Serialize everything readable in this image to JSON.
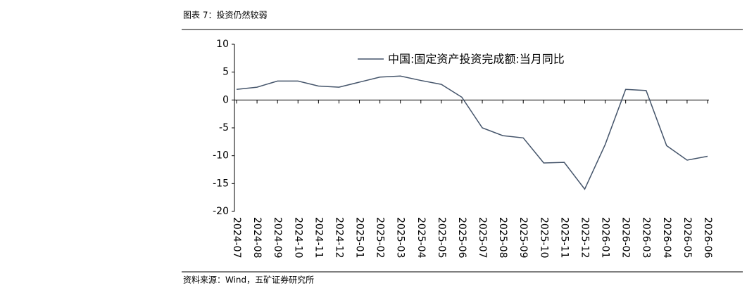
{
  "header": {
    "title": "图表 7：投资仍然较弱"
  },
  "chart_data": {
    "type": "line",
    "categories": [
      "2024-07",
      "2024-08",
      "2024-09",
      "2024-10",
      "2024-11",
      "2024-12",
      "2025-01",
      "2025-02",
      "2025-03",
      "2025-04",
      "2025-05",
      "2025-06",
      "2025-07",
      "2025-08",
      "2025-09",
      "2025-10",
      "2025-11",
      "2025-12",
      "2026-01",
      "2026-02",
      "2026-03",
      "2026-04",
      "2026-05",
      "2026-06"
    ],
    "series": [
      {
        "name": "中国:固定资产投资完成额:当月同比",
        "color": "#44546a",
        "values": [
          1.9,
          2.3,
          3.4,
          3.4,
          2.5,
          2.3,
          3.2,
          4.1,
          4.3,
          3.5,
          2.8,
          0.5,
          -5.0,
          -6.4,
          -6.8,
          -11.3,
          -11.2,
          -16.0,
          -8.0,
          1.9,
          1.7,
          -8.2,
          -10.8,
          -10.1
        ]
      }
    ],
    "ylim": [
      -20,
      10
    ],
    "yticks": [
      -20,
      -15,
      -10,
      -5,
      0,
      5,
      10
    ],
    "legend": "top"
  },
  "footer": {
    "source": "资料来源：Wind，五矿证券研究所"
  }
}
